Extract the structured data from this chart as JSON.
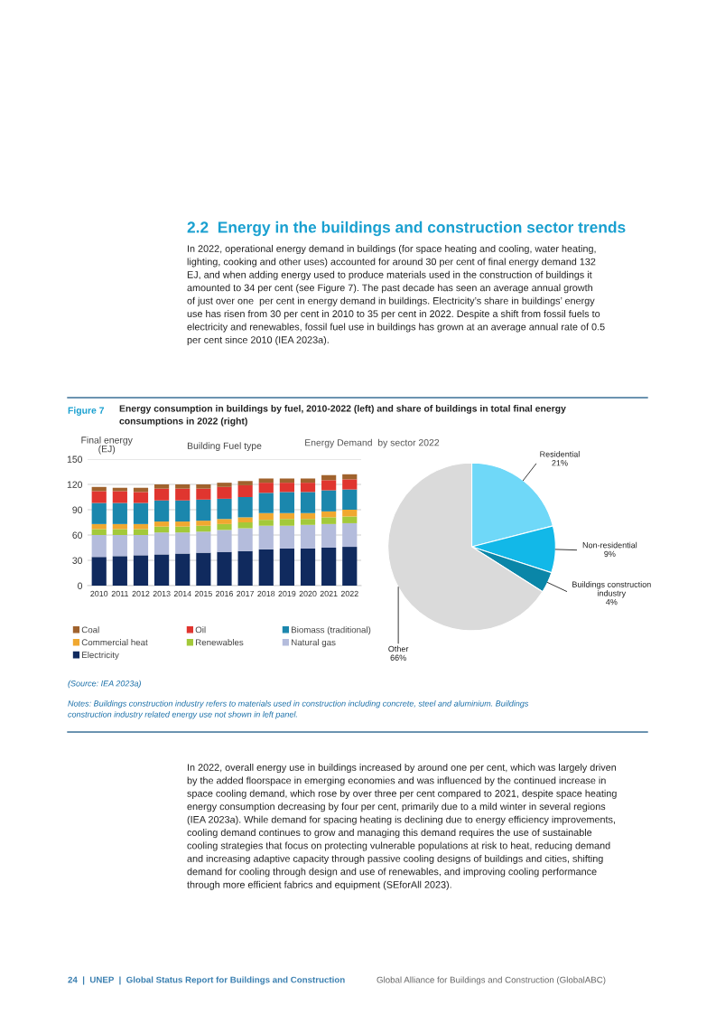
{
  "chart_data": [
    {
      "type": "bar",
      "title": "Building Fuel type",
      "ylabel": "Final energy\n(EJ)",
      "categories": [
        "2010",
        "2011",
        "2012",
        "2013",
        "2014",
        "2015",
        "2016",
        "2017",
        "2018",
        "2019",
        "2020",
        "2021",
        "2022"
      ],
      "stacked": true,
      "ylim": [
        0,
        150
      ],
      "yticks": [
        0,
        30,
        60,
        90,
        120,
        150
      ],
      "grid": "y",
      "legend": "bottom",
      "series": [
        {
          "name": "Electricity",
          "color": "#102a5e",
          "values": [
            34,
            35,
            36,
            37,
            38,
            39,
            40,
            41,
            43,
            44,
            44,
            45,
            46
          ]
        },
        {
          "name": "Natural gas",
          "color": "#b4bcdc",
          "values": [
            26,
            25,
            24,
            26,
            25,
            25,
            26,
            27,
            28,
            27,
            28,
            28,
            28
          ]
        },
        {
          "name": "Renewables",
          "color": "#a3c93a",
          "values": [
            7,
            7,
            7,
            7,
            7,
            7,
            7,
            7,
            7,
            8,
            7,
            8,
            8
          ]
        },
        {
          "name": "Commercial heat",
          "color": "#f0a830",
          "values": [
            6,
            6,
            6,
            6,
            6,
            6,
            6,
            6,
            8,
            7,
            7,
            7,
            8
          ]
        },
        {
          "name": "Biomass (traditional)",
          "color": "#1b87ad",
          "values": [
            25,
            25,
            25,
            25,
            25,
            25,
            24,
            24,
            24,
            25,
            25,
            25,
            24
          ]
        },
        {
          "name": "Oil",
          "color": "#e0352f",
          "values": [
            14,
            14,
            13,
            14,
            14,
            13,
            14,
            14,
            12,
            11,
            11,
            12,
            12
          ]
        },
        {
          "name": "Coal",
          "color": "#a0622d",
          "values": [
            5,
            4,
            5,
            5,
            5,
            5,
            5,
            5,
            5,
            5,
            5,
            6,
            6
          ]
        }
      ],
      "annotations": [
        "2.2  Energy in the buildings and construction sector trends",
        "In 2022, operational energy demand in buildings (for space heating and cooling, water heating,\nlighting, cooking and other uses) accounted for around 30 per cent of final energy demand 132\nEJ, and when adding energy used to produce materials used in the construction of buildings it\namounted to 34 per cent (see Figure 7). The past decade has seen an average annual growth\nof just over one  per cent in energy demand in buildings. Electricity’s share in buildings’ energy\nuse has risen from 30 per cent in 2010 to 35 per cent in 2022. Despite a shift from fossil fuels to\nelectricity and renewables, fossil fuel use in buildings has grown at an average annual rate of 0.5\nper cent since 2010 (IEA 2023a).",
        "Figure 7",
        "Energy consumption in buildings by fuel, 2010-2022 (left) and share of buildings in total final energy\nconsumptions in 2022 (right)",
        "(Source: IEA 2023a)",
        "Notes: Buildings construction industry refers to materials used in construction including concrete, steel and aluminium. Buildings\nconstruction industry related energy use not shown in left panel.",
        "In 2022, overall energy use in buildings increased by around one per cent, which was largely driven\nby the added floorspace in emerging economies and was influenced by the continued increase in\nspace cooling demand, which rose by over three per cent compared to 2021, despite space heating\nenergy consumption decreasing by four per cent, primarily due to a mild winter in several regions\n(IEA 2023a). While demand for spacing heating is declining due to energy efficiency improvements,\ncooling demand continues to grow and managing this demand requires the use of sustainable\ncooling strategies that focus on protecting vulnerable populations at risk to heat, reducing demand\nand increasing adaptive capacity through passive cooling designs of buildings and cities, shifting\ndemand for cooling through design and use of renewables, and improving cooling performance\nthrough more efficient fabrics and equipment (SEforAll 2023).",
        "24  |  UNEP  |  Global Status Report for Buildings and Construction",
        "Global Alliance for Buildings and Construction (GlobalABC)"
      ]
    },
    {
      "type": "pie",
      "title": "Energy Demand  by sector 2022",
      "categories": [
        "Residential",
        "Non-residential",
        "Buildings construction\nindustry",
        "Other"
      ],
      "values": [
        21,
        9,
        4,
        66
      ],
      "value_labels": [
        "21%",
        "9%",
        "4%",
        "66%"
      ],
      "colors": [
        "#6fd8f8",
        "#12b8e8",
        "#0a86a8",
        "#dadada"
      ]
    }
  ]
}
